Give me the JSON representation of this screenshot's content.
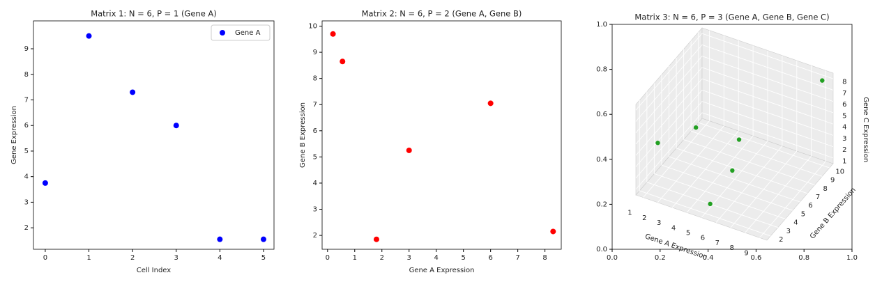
{
  "chart_data": [
    {
      "type": "scatter",
      "title": "Matrix 1: N = 6, P = 1 (Gene A)",
      "xlabel": "Cell Index",
      "ylabel": "Gene Expression",
      "series": [
        {
          "name": "Gene A",
          "color": "#0000ff",
          "x": [
            0,
            1,
            2,
            3,
            4,
            5
          ],
          "values": [
            3.75,
            9.5,
            7.3,
            6.0,
            1.55,
            1.55
          ]
        }
      ],
      "xlim": [
        -0.27,
        5.24
      ],
      "ylim": [
        1.16,
        10.09
      ],
      "xticks": [
        0,
        1,
        2,
        3,
        4,
        5
      ],
      "yticks": [
        2,
        3,
        4,
        5,
        6,
        7,
        8,
        9
      ],
      "legend": "upper right"
    },
    {
      "type": "scatter",
      "title": "Matrix 2: N = 6, P = 2 (Gene A, Gene B)",
      "xlabel": "Gene A Expression",
      "ylabel": "Gene B Expression",
      "series": [
        {
          "color": "#ff0000",
          "x": [
            0.2,
            0.55,
            1.8,
            3.0,
            6.0,
            8.3
          ],
          "values": [
            9.7,
            8.65,
            1.85,
            5.25,
            7.05,
            2.15
          ]
        }
      ],
      "xlim": [
        -0.2,
        8.6
      ],
      "ylim": [
        1.47,
        10.2
      ],
      "xticks": [
        0,
        1,
        2,
        3,
        4,
        5,
        6,
        7,
        8
      ],
      "yticks": [
        2,
        3,
        4,
        5,
        6,
        7,
        8,
        9,
        10
      ]
    },
    {
      "type": "scatter3d",
      "title": "Matrix 3: N = 6, P = 3 (Gene A, Gene B, Gene C)",
      "xlim": [
        0,
        1
      ],
      "ylim": [
        0,
        1
      ],
      "xticks": [
        {
          "value": 0,
          "label": "0.0"
        },
        0.2,
        0.4,
        0.6,
        0.8,
        {
          "value": 1,
          "label": "1.0"
        }
      ],
      "yticks": [
        {
          "value": 0,
          "label": "0.0"
        },
        0.2,
        0.4,
        0.6,
        0.8,
        {
          "value": 1,
          "label": "1.0"
        }
      ],
      "axes3d": {
        "xlabel": "Gene A Expression",
        "ylabel": "Gene B Expression",
        "zlabel": "Gene C Expression",
        "xlim": [
          0.5,
          9.5
        ],
        "ylim": [
          1.5,
          10.5
        ],
        "zlim": [
          0.5,
          8.5
        ],
        "xticks": [
          1,
          2,
          3,
          4,
          5,
          6,
          7,
          8,
          9
        ],
        "yticks": [
          2,
          3,
          4,
          5,
          6,
          7,
          8,
          9,
          10
        ],
        "zticks": [
          1,
          2,
          3,
          4,
          5,
          6,
          7,
          8
        ]
      },
      "series": [
        {
          "color": "#22a022",
          "x": [
            1.4,
            2.3,
            4.1,
            5.0,
            5.1,
            9.0
          ],
          "y": [
            2.7,
            6.1,
            8.4,
            5.7,
            2.5,
            10.0
          ],
          "z": [
            4.6,
            3.8,
            1.8,
            1.5,
            1.0,
            8.0
          ]
        }
      ]
    }
  ]
}
